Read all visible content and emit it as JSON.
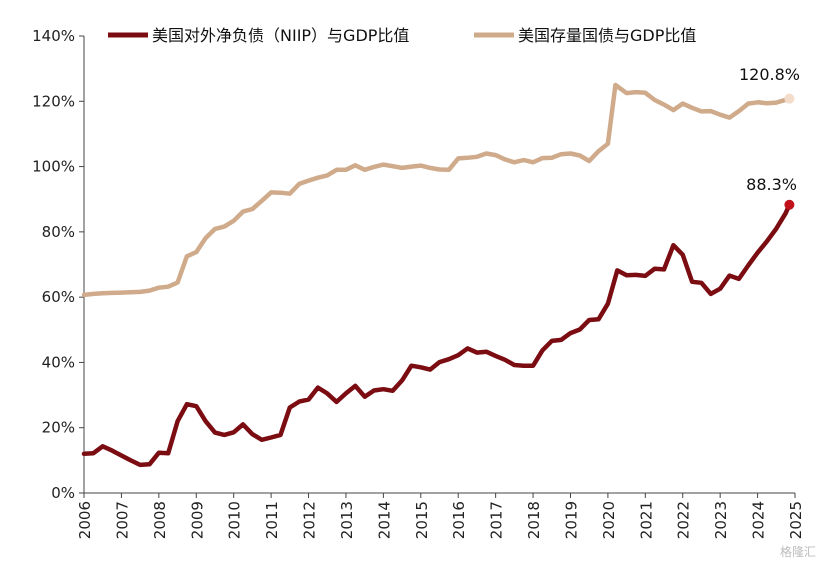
{
  "chart_data": {
    "type": "line",
    "title": "",
    "xlabel": "",
    "ylabel": "",
    "xlim": [
      2006.0,
      2025.0
    ],
    "ylim": [
      0,
      140
    ],
    "x_ticks": [
      "2006",
      "2007",
      "2008",
      "2009",
      "2010",
      "2011",
      "2012",
      "2013",
      "2014",
      "2015",
      "2016",
      "2017",
      "2018",
      "2019",
      "2020",
      "2021",
      "2022",
      "2023",
      "2024",
      "2025"
    ],
    "y_ticks": [
      "0%",
      "20%",
      "40%",
      "60%",
      "80%",
      "100%",
      "120%",
      "140%"
    ],
    "grid": false,
    "legend_position": "top",
    "series": [
      {
        "name": "美国对外净负债（NIIP）与GDP比值",
        "color": "#7b0d12",
        "end_label": "88.3%",
        "points": [
          [
            2006.0,
            12.0
          ],
          [
            2006.25,
            12.2
          ],
          [
            2006.5,
            14.3
          ],
          [
            2006.75,
            13.0
          ],
          [
            2007.0,
            11.5
          ],
          [
            2007.25,
            10.0
          ],
          [
            2007.5,
            8.6
          ],
          [
            2007.75,
            8.8
          ],
          [
            2008.0,
            12.3
          ],
          [
            2008.25,
            12.2
          ],
          [
            2008.5,
            22.0
          ],
          [
            2008.75,
            27.2
          ],
          [
            2009.0,
            26.6
          ],
          [
            2009.25,
            22.0
          ],
          [
            2009.5,
            18.5
          ],
          [
            2009.75,
            17.8
          ],
          [
            2010.0,
            18.6
          ],
          [
            2010.25,
            21.0
          ],
          [
            2010.5,
            18.0
          ],
          [
            2010.75,
            16.3
          ],
          [
            2011.0,
            17.0
          ],
          [
            2011.25,
            17.8
          ],
          [
            2011.5,
            26.2
          ],
          [
            2011.75,
            28.0
          ],
          [
            2012.0,
            28.6
          ],
          [
            2012.25,
            32.3
          ],
          [
            2012.5,
            30.5
          ],
          [
            2012.75,
            27.9
          ],
          [
            2013.0,
            30.5
          ],
          [
            2013.25,
            32.8
          ],
          [
            2013.5,
            29.5
          ],
          [
            2013.75,
            31.4
          ],
          [
            2014.0,
            31.8
          ],
          [
            2014.25,
            31.3
          ],
          [
            2014.5,
            34.5
          ],
          [
            2014.75,
            39.0
          ],
          [
            2015.0,
            38.5
          ],
          [
            2015.25,
            37.8
          ],
          [
            2015.5,
            40.1
          ],
          [
            2015.75,
            41.0
          ],
          [
            2016.0,
            42.2
          ],
          [
            2016.25,
            44.3
          ],
          [
            2016.5,
            43.0
          ],
          [
            2016.75,
            43.3
          ],
          [
            2017.0,
            42.0
          ],
          [
            2017.25,
            40.8
          ],
          [
            2017.5,
            39.2
          ],
          [
            2017.75,
            39.0
          ],
          [
            2018.0,
            39.0
          ],
          [
            2018.25,
            43.7
          ],
          [
            2018.5,
            46.6
          ],
          [
            2018.75,
            46.9
          ],
          [
            2019.0,
            49.0
          ],
          [
            2019.25,
            50.1
          ],
          [
            2019.5,
            53.0
          ],
          [
            2019.75,
            53.2
          ],
          [
            2020.0,
            58.0
          ],
          [
            2020.25,
            68.2
          ],
          [
            2020.5,
            66.7
          ],
          [
            2020.75,
            66.8
          ],
          [
            2021.0,
            66.5
          ],
          [
            2021.25,
            68.7
          ],
          [
            2021.5,
            68.5
          ],
          [
            2021.75,
            75.9
          ],
          [
            2022.0,
            73.0
          ],
          [
            2022.25,
            64.7
          ],
          [
            2022.5,
            64.4
          ],
          [
            2022.75,
            61.0
          ],
          [
            2023.0,
            62.6
          ],
          [
            2023.25,
            66.6
          ],
          [
            2023.5,
            65.6
          ],
          [
            2023.75,
            69.7
          ],
          [
            2024.0,
            73.6
          ],
          [
            2024.25,
            77.1
          ],
          [
            2024.5,
            81.0
          ],
          [
            2024.75,
            85.7
          ],
          [
            2024.85,
            88.3
          ]
        ]
      },
      {
        "name": "美国存量国债与GDP比值",
        "color": "#d0ab8b",
        "end_label": "120.8%",
        "points": [
          [
            2006.0,
            60.7
          ],
          [
            2006.25,
            61.0
          ],
          [
            2006.5,
            61.2
          ],
          [
            2006.75,
            61.3
          ],
          [
            2007.0,
            61.4
          ],
          [
            2007.25,
            61.5
          ],
          [
            2007.5,
            61.6
          ],
          [
            2007.75,
            62.0
          ],
          [
            2008.0,
            62.9
          ],
          [
            2008.25,
            63.2
          ],
          [
            2008.5,
            64.5
          ],
          [
            2008.75,
            72.5
          ],
          [
            2009.0,
            73.8
          ],
          [
            2009.25,
            78.1
          ],
          [
            2009.5,
            80.9
          ],
          [
            2009.75,
            81.6
          ],
          [
            2010.0,
            83.4
          ],
          [
            2010.25,
            86.2
          ],
          [
            2010.5,
            87.0
          ],
          [
            2010.75,
            89.5
          ],
          [
            2011.0,
            92.1
          ],
          [
            2011.25,
            92.0
          ],
          [
            2011.5,
            91.7
          ],
          [
            2011.75,
            94.7
          ],
          [
            2012.0,
            95.7
          ],
          [
            2012.25,
            96.6
          ],
          [
            2012.5,
            97.3
          ],
          [
            2012.75,
            99.0
          ],
          [
            2013.0,
            99.0
          ],
          [
            2013.25,
            100.4
          ],
          [
            2013.5,
            99.0
          ],
          [
            2013.75,
            99.9
          ],
          [
            2014.0,
            100.6
          ],
          [
            2014.25,
            100.1
          ],
          [
            2014.5,
            99.6
          ],
          [
            2014.75,
            100.0
          ],
          [
            2015.0,
            100.3
          ],
          [
            2015.25,
            99.6
          ],
          [
            2015.5,
            99.1
          ],
          [
            2015.75,
            99.0
          ],
          [
            2016.0,
            102.5
          ],
          [
            2016.25,
            102.7
          ],
          [
            2016.5,
            103.0
          ],
          [
            2016.75,
            104.0
          ],
          [
            2017.0,
            103.5
          ],
          [
            2017.25,
            102.2
          ],
          [
            2017.5,
            101.3
          ],
          [
            2017.75,
            102.0
          ],
          [
            2018.0,
            101.3
          ],
          [
            2018.25,
            102.6
          ],
          [
            2018.5,
            102.7
          ],
          [
            2018.75,
            103.8
          ],
          [
            2019.0,
            104.0
          ],
          [
            2019.25,
            103.4
          ],
          [
            2019.5,
            101.7
          ],
          [
            2019.75,
            104.7
          ],
          [
            2020.0,
            107.0
          ],
          [
            2020.2,
            125.0
          ],
          [
            2020.5,
            122.5
          ],
          [
            2020.75,
            122.8
          ],
          [
            2021.0,
            122.6
          ],
          [
            2021.25,
            120.4
          ],
          [
            2021.5,
            119.0
          ],
          [
            2021.75,
            117.3
          ],
          [
            2022.0,
            119.3
          ],
          [
            2022.25,
            118.0
          ],
          [
            2022.5,
            116.9
          ],
          [
            2022.75,
            117.0
          ],
          [
            2023.0,
            115.9
          ],
          [
            2023.25,
            115.0
          ],
          [
            2023.5,
            117.0
          ],
          [
            2023.75,
            119.3
          ],
          [
            2024.0,
            119.7
          ],
          [
            2024.25,
            119.4
          ],
          [
            2024.5,
            119.6
          ],
          [
            2024.85,
            120.8
          ]
        ]
      }
    ]
  },
  "watermark": "格隆汇"
}
